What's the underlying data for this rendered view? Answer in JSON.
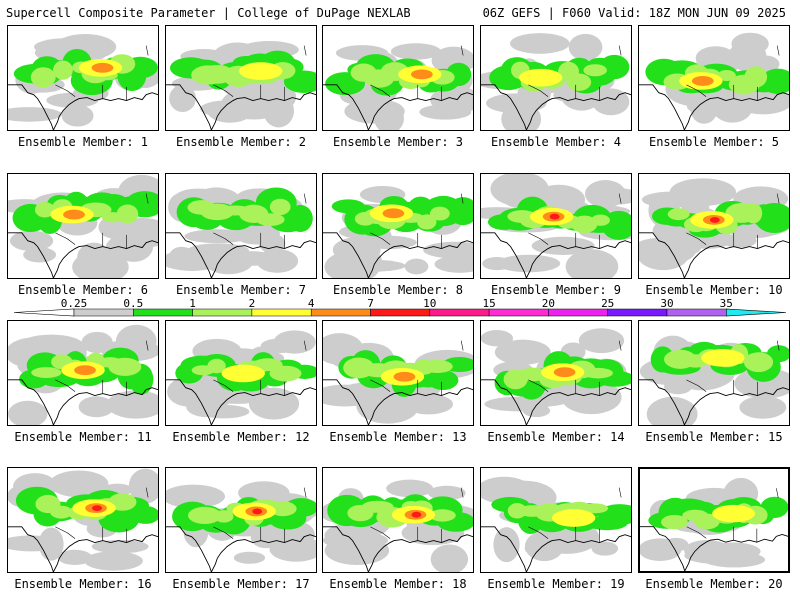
{
  "header": {
    "title": "Supercell Composite Parameter | College of DuPage NEXLAB",
    "run_info": "06Z GEFS | F060 Valid: 18Z MON JUN 09 2025"
  },
  "colorbar": {
    "ticks": [
      "0.25",
      "0.5",
      "1",
      "2",
      "4",
      "7",
      "10",
      "15",
      "20",
      "25",
      "30",
      "35"
    ],
    "colors": [
      "#ffffff",
      "#cdcdcd",
      "#22e01a",
      "#a9f25a",
      "#ffff33",
      "#ff8c1a",
      "#ff1a1a",
      "#ff1a8c",
      "#ff2bd5",
      "#ee22ee",
      "#7a1aff",
      "#b061f0",
      "#22e8f0"
    ]
  },
  "panels": [
    {
      "label": "Ensemble Member: 1",
      "peak": "orange"
    },
    {
      "label": "Ensemble Member: 2",
      "peak": "yellow"
    },
    {
      "label": "Ensemble Member: 3",
      "peak": "orange"
    },
    {
      "label": "Ensemble Member: 4",
      "peak": "yellow"
    },
    {
      "label": "Ensemble Member: 5",
      "peak": "orange"
    },
    {
      "label": "Ensemble Member: 6",
      "peak": "orange"
    },
    {
      "label": "Ensemble Member: 7",
      "peak": "light-green"
    },
    {
      "label": "Ensemble Member: 8",
      "peak": "orange"
    },
    {
      "label": "Ensemble Member: 9",
      "peak": "red"
    },
    {
      "label": "Ensemble Member: 10",
      "peak": "red"
    },
    {
      "label": "Ensemble Member: 11",
      "peak": "orange"
    },
    {
      "label": "Ensemble Member: 12",
      "peak": "yellow"
    },
    {
      "label": "Ensemble Member: 13",
      "peak": "orange"
    },
    {
      "label": "Ensemble Member: 14",
      "peak": "orange"
    },
    {
      "label": "Ensemble Member: 15",
      "peak": "yellow"
    },
    {
      "label": "Ensemble Member: 16",
      "peak": "red"
    },
    {
      "label": "Ensemble Member: 17",
      "peak": "red"
    },
    {
      "label": "Ensemble Member: 18",
      "peak": "red"
    },
    {
      "label": "Ensemble Member: 19",
      "peak": "yellow"
    },
    {
      "label": "Ensemble Member: 20",
      "peak": "yellow",
      "selected": true
    }
  ]
}
